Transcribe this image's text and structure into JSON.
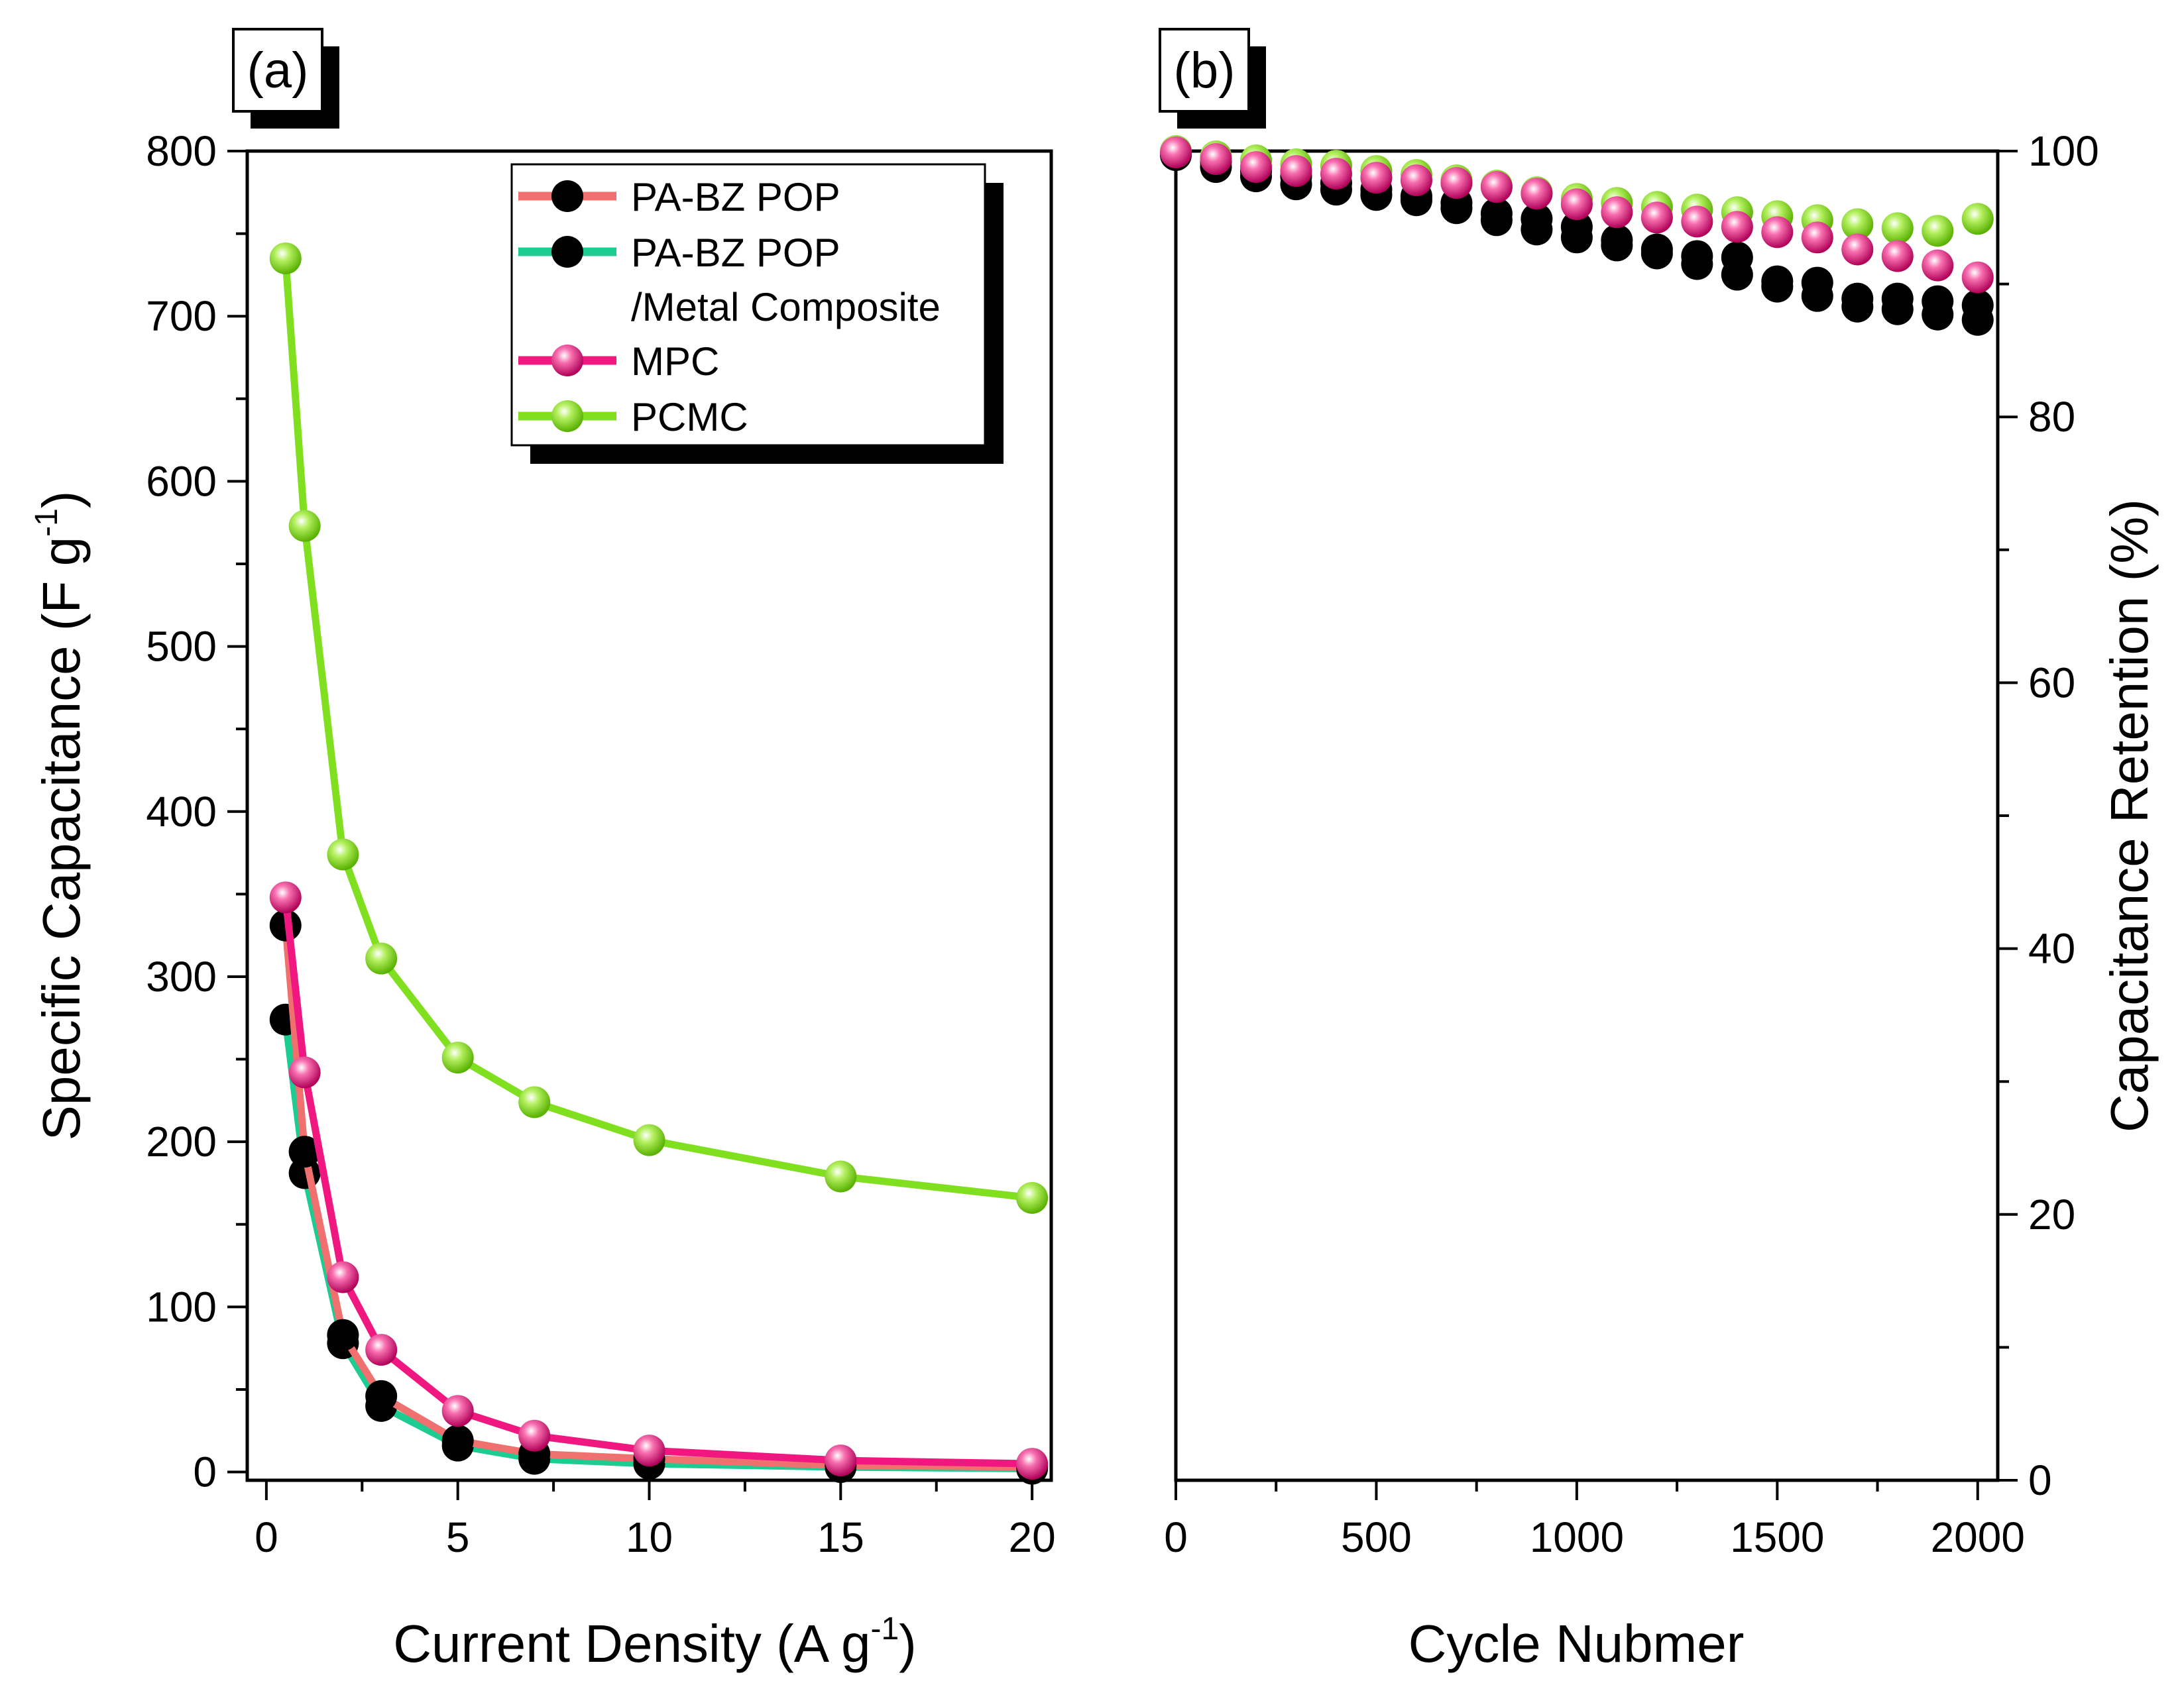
{
  "colors": {
    "PA-BZ POP": "#f07070",
    "PA-BZ POP /Metal Composite": "#1ccc90",
    "MPC": "#f01880",
    "PCMC": "#80e020"
  },
  "chart_data": [
    {
      "panel": "(a)",
      "type": "line",
      "xlabel": "Current Density (A g",
      "xlabel_sup": "-1",
      "xlabel_end": ")",
      "ylabel": "Specific Capacitance (F g",
      "ylabel_sup": "-1",
      "ylabel_end": ")",
      "xlim": [
        -0.5,
        20.5
      ],
      "ylim": [
        -5,
        800
      ],
      "xticks": [
        0,
        5,
        10,
        15,
        20
      ],
      "xtick_labels": [
        "0",
        "5",
        "10",
        "15",
        "20"
      ],
      "yticks": [
        0,
        100,
        200,
        300,
        400,
        500,
        600,
        700,
        800
      ],
      "ytick_labels": [
        "0",
        "100",
        "200",
        "300",
        "400",
        "500",
        "600",
        "700",
        "800"
      ],
      "x": [
        0.5,
        1,
        2,
        3,
        5,
        7,
        10,
        15,
        20
      ],
      "legend_position": "top-right",
      "legend": [
        "PA-BZ POP",
        "PA-BZ POP",
        "/Metal Composite",
        "MPC",
        "PCMC"
      ],
      "series": [
        {
          "name": "PA-BZ POP",
          "values": [
            331,
            194,
            83,
            46,
            19,
            11,
            8,
            4,
            3
          ]
        },
        {
          "name": "PA-BZ POP /Metal Composite",
          "values": [
            274,
            181,
            78,
            40,
            16,
            8,
            5,
            3,
            2
          ]
        },
        {
          "name": "MPC",
          "values": [
            348,
            242,
            118,
            74,
            37,
            22,
            13,
            7,
            5
          ]
        },
        {
          "name": "PCMC",
          "values": [
            735,
            573,
            374,
            311,
            251,
            224,
            201,
            179,
            166
          ]
        }
      ]
    },
    {
      "panel": "(b)",
      "type": "scatter",
      "xlabel": "Cycle Nubmer",
      "ylabel": "Capacitance Retention (%)",
      "xlim": [
        0,
        2050
      ],
      "ylim": [
        0,
        100
      ],
      "xticks": [
        0,
        500,
        1000,
        1500,
        2000
      ],
      "xtick_labels": [
        "0",
        "500",
        "1000",
        "1500",
        "2000"
      ],
      "yticks": [
        0,
        20,
        40,
        60,
        80,
        100
      ],
      "ytick_labels": [
        "0",
        "20",
        "40",
        "60",
        "80",
        "100"
      ],
      "x": [
        0,
        100,
        200,
        300,
        400,
        500,
        600,
        700,
        800,
        900,
        1000,
        1100,
        1200,
        1300,
        1400,
        1500,
        1600,
        1700,
        1800,
        1900,
        2000
      ],
      "series": [
        {
          "name": "PCMC",
          "values": [
            100,
            99.6,
            99.3,
            99.0,
            98.9,
            98.5,
            98.2,
            97.8,
            97.4,
            96.9,
            96.4,
            96.1,
            95.8,
            95.6,
            95.4,
            95.1,
            94.8,
            94.5,
            94.2,
            94.0,
            94.9
          ]
        },
        {
          "name": "PA-BZ POP",
          "values": [
            99.8,
            99.2,
            98.5,
            98.1,
            97.6,
            97.1,
            96.6,
            96.1,
            95.3,
            94.9,
            94.3,
            93.3,
            92.6,
            92.1,
            92.0,
            90.2,
            90.1,
            88.3,
            88.1,
            87.7,
            87.3
          ]
        },
        {
          "name": "PA-BZ POP /Metal Composite",
          "values": [
            99.7,
            98.8,
            98.1,
            97.5,
            97.1,
            96.7,
            96.3,
            95.7,
            94.8,
            94.1,
            93.5,
            92.9,
            92.3,
            91.5,
            90.7,
            89.8,
            89.1,
            88.9,
            88.9,
            88.7,
            88.4
          ]
        },
        {
          "name": "MPC",
          "values": [
            99.9,
            99.4,
            98.8,
            98.5,
            98.3,
            98.0,
            97.8,
            97.6,
            97.3,
            96.8,
            96.0,
            95.4,
            95.0,
            94.7,
            94.3,
            93.9,
            93.5,
            92.6,
            92.1,
            91.4,
            90.5
          ]
        }
      ]
    }
  ]
}
